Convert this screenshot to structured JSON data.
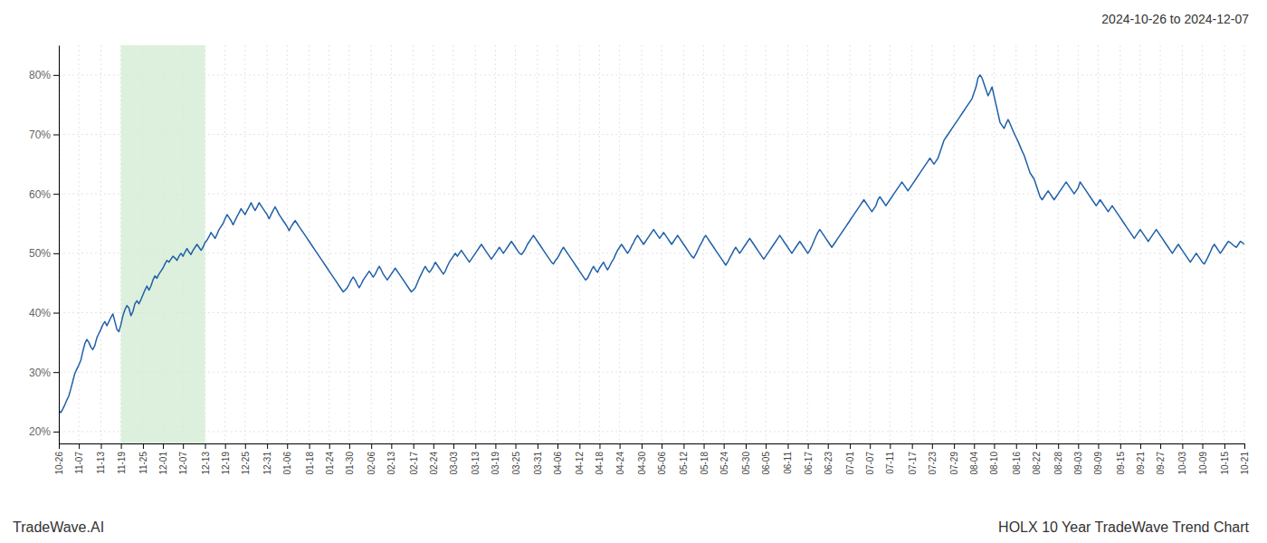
{
  "chart_data": {
    "type": "line",
    "title": "HOLX 10 Year TradeWave Trend Chart",
    "subtitle": "2024-10-26 to 2024-12-07",
    "annotations": [
      "TradeWave.AI"
    ],
    "color": "#2060a8",
    "grid": true,
    "ylim": [
      18,
      85
    ],
    "yticks": [
      {
        "value": 20,
        "label": "20%"
      },
      {
        "value": 30,
        "label": "30%"
      },
      {
        "value": 40,
        "label": "40%"
      },
      {
        "value": 50,
        "label": "50%"
      },
      {
        "value": 60,
        "label": "60%"
      },
      {
        "value": 70,
        "label": "70%"
      },
      {
        "value": 80,
        "label": "80%"
      }
    ],
    "highlight": {
      "from": "11-19",
      "to": "12-13",
      "color": "#d4ecd4"
    },
    "categories": [
      "10-26",
      null,
      null,
      null,
      null,
      null,
      null,
      null,
      null,
      null,
      "11-07",
      null,
      null,
      null,
      null,
      null,
      null,
      null,
      null,
      null,
      null,
      "11-13",
      null,
      null,
      null,
      null,
      null,
      null,
      null,
      null,
      null,
      "11-19",
      null,
      null,
      null,
      null,
      null,
      null,
      null,
      null,
      null,
      null,
      "11-25",
      null,
      null,
      null,
      null,
      null,
      null,
      null,
      null,
      null,
      "12-01",
      null,
      null,
      null,
      null,
      null,
      null,
      null,
      null,
      null,
      "12-07",
      null,
      null,
      null,
      null,
      null,
      null,
      null,
      null,
      null,
      null,
      "12-13",
      null,
      null,
      null,
      null,
      null,
      null,
      null,
      null,
      null,
      "12-19",
      null,
      null,
      null,
      null,
      null,
      null,
      null,
      null,
      null,
      "12-25",
      null,
      null,
      null,
      null,
      null,
      null,
      null,
      null,
      null,
      null,
      "12-31",
      null,
      null,
      null,
      null,
      null,
      null,
      null,
      null,
      null,
      "01-06",
      null,
      null,
      null,
      null,
      null,
      null,
      null,
      null,
      null,
      null,
      "01-18",
      null,
      null,
      null,
      null,
      null,
      null,
      null,
      null,
      null,
      "01-24",
      null,
      null,
      null,
      null,
      null,
      null,
      null,
      null,
      null,
      "01-30",
      null,
      null,
      null,
      null,
      null,
      null,
      null,
      null,
      null,
      null,
      "02-06",
      null,
      null,
      null,
      null,
      null,
      null,
      null,
      null,
      null,
      "02-13",
      null,
      null,
      null,
      null,
      null,
      null,
      null,
      null,
      null,
      null,
      "02-17",
      null,
      null,
      null,
      null,
      null,
      null,
      null,
      null,
      null,
      "02-24",
      null,
      null,
      null,
      null,
      null,
      null,
      null,
      null,
      null,
      "03-03",
      null,
      null,
      null,
      null,
      null,
      null,
      null,
      null,
      null,
      null,
      "03-13",
      null,
      null,
      null,
      null,
      null,
      null,
      null,
      null,
      null,
      "03-19",
      null,
      null,
      null,
      null,
      null,
      null,
      null,
      null,
      null,
      "03-25",
      null,
      null,
      null,
      null,
      null,
      null,
      null,
      null,
      null,
      null,
      "03-31",
      null,
      null,
      null,
      null,
      null,
      null,
      null,
      null,
      null,
      "04-06",
      null,
      null,
      null,
      null,
      null,
      null,
      null,
      null,
      null,
      null,
      "04-12",
      null,
      null,
      null,
      null,
      null,
      null,
      null,
      null,
      null,
      "04-18",
      null,
      null,
      null,
      null,
      null,
      null,
      null,
      null,
      null,
      "04-24",
      null,
      null,
      null,
      null,
      null,
      null,
      null,
      null,
      null,
      null,
      "04-30",
      null,
      null,
      null,
      null,
      null,
      null,
      null,
      null,
      null,
      "05-06",
      null,
      null,
      null,
      null,
      null,
      null,
      null,
      null,
      null,
      null,
      "05-12",
      null,
      null,
      null,
      null,
      null,
      null,
      null,
      null,
      null,
      "05-18",
      null,
      null,
      null,
      null,
      null,
      null,
      null,
      null,
      null,
      "05-24",
      null,
      null,
      null,
      null,
      null,
      null,
      null,
      null,
      null,
      null,
      "05-30",
      null,
      null,
      null,
      null,
      null,
      null,
      null,
      null,
      null,
      "06-05",
      null,
      null,
      null,
      null,
      null,
      null,
      null,
      null,
      null,
      null,
      "06-11",
      null,
      null,
      null,
      null,
      null,
      null,
      null,
      null,
      null,
      "06-17",
      null,
      null,
      null,
      null,
      null,
      null,
      null,
      null,
      null,
      "06-23",
      null,
      null,
      null,
      null,
      null,
      null,
      null,
      null,
      null,
      null,
      "07-01",
      null,
      null,
      null,
      null,
      null,
      null,
      null,
      null,
      null,
      "07-07",
      null,
      null,
      null,
      null,
      null,
      null,
      null,
      null,
      null,
      "07-11",
      null,
      null,
      null,
      null,
      null,
      null,
      null,
      null,
      null,
      null,
      "07-17",
      null,
      null,
      null,
      null,
      null,
      null,
      null,
      null,
      null,
      "07-23",
      null,
      null,
      null,
      null,
      null,
      null,
      null,
      null,
      null,
      null,
      "07-29",
      null,
      null,
      null,
      null,
      null,
      null,
      null,
      null,
      null,
      "08-04",
      null,
      null,
      null,
      null,
      null,
      null,
      null,
      null,
      null,
      "08-10",
      null,
      null,
      null,
      null,
      null,
      null,
      null,
      null,
      null,
      null,
      "08-16",
      null,
      null,
      null,
      null,
      null,
      null,
      null,
      null,
      null,
      "08-22",
      null,
      null,
      null,
      null,
      null,
      null,
      null,
      null,
      null,
      null,
      "08-28",
      null,
      null,
      null,
      null,
      null,
      null,
      null,
      null,
      null,
      "09-03",
      null,
      null,
      null,
      null,
      null,
      null,
      null,
      null,
      null,
      "09-09",
      null,
      null,
      null,
      null,
      null,
      null,
      null,
      null,
      null,
      null,
      "09-15",
      null,
      null,
      null,
      null,
      null,
      null,
      null,
      null,
      null,
      "09-21",
      null,
      null,
      null,
      null,
      null,
      null,
      null,
      null,
      null,
      "09-27",
      null,
      null,
      null,
      null,
      null,
      null,
      null,
      null,
      null,
      null,
      "10-03",
      null,
      null,
      null,
      null,
      null,
      null,
      null,
      null,
      null,
      "10-09",
      null,
      null,
      null,
      null,
      null,
      null,
      null,
      null,
      null,
      null,
      "10-15",
      null,
      null,
      null,
      null,
      null,
      null,
      null,
      null,
      null,
      "10-21"
    ],
    "values": [
      23.5,
      23.2,
      23.8,
      24.5,
      25.3,
      26.0,
      27.2,
      28.5,
      29.8,
      30.5,
      31.2,
      32.0,
      33.5,
      34.8,
      35.5,
      35.0,
      34.2,
      33.8,
      34.5,
      35.8,
      36.5,
      37.2,
      38.0,
      38.5,
      37.8,
      38.5,
      39.2,
      39.8,
      38.5,
      37.2,
      36.8,
      38.0,
      39.5,
      40.5,
      41.2,
      40.8,
      39.5,
      40.2,
      41.5,
      42.0,
      41.5,
      42.2,
      43.0,
      43.8,
      44.5,
      43.8,
      44.5,
      45.5,
      46.2,
      45.8,
      46.5,
      47.0,
      47.5,
      48.2,
      48.8,
      48.5,
      49.0,
      49.5,
      49.2,
      48.8,
      49.5,
      50.0,
      49.5,
      50.2,
      50.8,
      50.2,
      49.8,
      50.5,
      51.0,
      51.5,
      51.0,
      50.5,
      51.0,
      51.8,
      52.2,
      52.8,
      53.5,
      53.0,
      52.5,
      53.2,
      54.0,
      54.5,
      55.0,
      55.8,
      56.5,
      56.0,
      55.5,
      54.8,
      55.5,
      56.2,
      56.8,
      57.5,
      57.0,
      56.5,
      57.2,
      57.8,
      58.5,
      57.8,
      57.2,
      57.8,
      58.5,
      58.0,
      57.5,
      57.0,
      56.5,
      55.8,
      56.5,
      57.2,
      57.8,
      57.2,
      56.5,
      56.0,
      55.5,
      55.0,
      54.5,
      53.8,
      54.5,
      55.0,
      55.5,
      55.0,
      54.5,
      54.0,
      53.5,
      53.0,
      52.5,
      52.0,
      51.5,
      51.0,
      50.5,
      50.0,
      49.5,
      49.0,
      48.5,
      48.0,
      47.5,
      47.0,
      46.5,
      46.0,
      45.5,
      45.0,
      44.5,
      44.0,
      43.5,
      43.8,
      44.2,
      44.8,
      45.5,
      46.0,
      45.5,
      44.8,
      44.2,
      44.8,
      45.5,
      46.0,
      46.5,
      47.0,
      46.5,
      46.0,
      46.5,
      47.2,
      47.8,
      47.2,
      46.5,
      46.0,
      45.5,
      46.0,
      46.5,
      47.0,
      47.5,
      47.0,
      46.5,
      46.0,
      45.5,
      45.0,
      44.5,
      44.0,
      43.5,
      43.8,
      44.2,
      45.0,
      45.8,
      46.5,
      47.2,
      47.8,
      47.2,
      46.8,
      47.2,
      47.8,
      48.5,
      48.0,
      47.5,
      47.0,
      46.5,
      47.0,
      47.8,
      48.5,
      49.0,
      49.5,
      50.0,
      49.5,
      50.0,
      50.5,
      50.0,
      49.5,
      49.0,
      48.5,
      49.0,
      49.5,
      50.0,
      50.5,
      51.0,
      51.5,
      51.0,
      50.5,
      50.0,
      49.5,
      49.0,
      49.5,
      50.0,
      50.5,
      51.0,
      50.5,
      50.0,
      50.5,
      51.0,
      51.5,
      52.0,
      51.5,
      51.0,
      50.5,
      50.0,
      49.8,
      50.2,
      50.8,
      51.5,
      52.0,
      52.5,
      53.0,
      52.5,
      52.0,
      51.5,
      51.0,
      50.5,
      50.0,
      49.5,
      49.0,
      48.5,
      48.2,
      48.8,
      49.2,
      49.8,
      50.5,
      51.0,
      50.5,
      50.0,
      49.5,
      49.0,
      48.5,
      48.0,
      47.5,
      47.0,
      46.5,
      46.0,
      45.5,
      45.8,
      46.5,
      47.2,
      47.8,
      47.2,
      46.8,
      47.5,
      48.0,
      48.5,
      47.8,
      47.2,
      47.8,
      48.5,
      49.0,
      49.8,
      50.5,
      51.0,
      51.5,
      51.0,
      50.5,
      50.0,
      50.5,
      51.2,
      51.8,
      52.5,
      53.0,
      52.5,
      52.0,
      51.5,
      52.0,
      52.5,
      53.0,
      53.5,
      54.0,
      53.5,
      53.0,
      52.5,
      53.0,
      53.5,
      53.0,
      52.5,
      52.0,
      51.5,
      52.0,
      52.5,
      53.0,
      52.5,
      52.0,
      51.5,
      51.0,
      50.5,
      50.0,
      49.5,
      49.2,
      49.8,
      50.5,
      51.2,
      51.8,
      52.5,
      53.0,
      52.5,
      52.0,
      51.5,
      51.0,
      50.5,
      50.0,
      49.5,
      49.0,
      48.5,
      48.0,
      48.5,
      49.2,
      49.8,
      50.5,
      51.0,
      50.5,
      50.0,
      50.5,
      51.0,
      51.5,
      52.0,
      52.5,
      52.0,
      51.5,
      51.0,
      50.5,
      50.0,
      49.5,
      49.0,
      49.5,
      50.0,
      50.5,
      51.0,
      51.5,
      52.0,
      52.5,
      53.0,
      52.5,
      52.0,
      51.5,
      51.0,
      50.5,
      50.0,
      50.5,
      51.0,
      51.5,
      52.0,
      51.5,
      51.0,
      50.5,
      50.0,
      50.5,
      51.2,
      52.0,
      52.8,
      53.5,
      54.0,
      53.5,
      53.0,
      52.5,
      52.0,
      51.5,
      51.0,
      51.5,
      52.0,
      52.5,
      53.0,
      53.5,
      54.0,
      54.5,
      55.0,
      55.5,
      56.0,
      56.5,
      57.0,
      57.5,
      58.0,
      58.5,
      59.0,
      58.5,
      58.0,
      57.5,
      57.0,
      57.5,
      58.0,
      59.0,
      59.5,
      59.0,
      58.5,
      58.0,
      58.5,
      59.0,
      59.5,
      60.0,
      60.5,
      61.0,
      61.5,
      62.0,
      61.5,
      61.0,
      60.5,
      61.0,
      61.5,
      62.0,
      62.5,
      63.0,
      63.5,
      64.0,
      64.5,
      65.0,
      65.5,
      66.0,
      65.5,
      65.0,
      65.5,
      66.0,
      67.0,
      68.0,
      69.0,
      69.5,
      70.0,
      70.5,
      71.0,
      71.5,
      72.0,
      72.5,
      73.0,
      73.5,
      74.0,
      74.5,
      75.0,
      75.5,
      76.0,
      77.0,
      78.0,
      79.5,
      80.0,
      79.5,
      78.5,
      77.5,
      76.5,
      77.2,
      78.0,
      76.5,
      75.0,
      73.5,
      72.0,
      71.5,
      71.0,
      71.8,
      72.5,
      71.8,
      71.0,
      70.2,
      69.5,
      68.8,
      68.0,
      67.2,
      66.5,
      65.5,
      64.5,
      63.5,
      63.0,
      62.5,
      61.5,
      60.5,
      59.5,
      59.0,
      59.5,
      60.0,
      60.5,
      60.0,
      59.5,
      59.0,
      59.5,
      60.0,
      60.5,
      61.0,
      61.5,
      62.0,
      61.5,
      61.0,
      60.5,
      60.0,
      60.5,
      61.0,
      62.0,
      61.5,
      61.0,
      60.5,
      60.0,
      59.5,
      59.0,
      58.5,
      58.0,
      58.5,
      59.0,
      58.5,
      58.0,
      57.5,
      57.0,
      57.5,
      58.0,
      57.5,
      57.0,
      56.5,
      56.0,
      55.5,
      55.0,
      54.5,
      54.0,
      53.5,
      53.0,
      52.5,
      53.0,
      53.5,
      54.0,
      53.5,
      53.0,
      52.5,
      52.0,
      52.5,
      53.0,
      53.5,
      54.0,
      53.5,
      53.0,
      52.5,
      52.0,
      51.5,
      51.0,
      50.5,
      50.0,
      50.5,
      51.0,
      51.5,
      51.0,
      50.5,
      50.0,
      49.5,
      49.0,
      48.5,
      49.0,
      49.5,
      50.0,
      49.5,
      49.0,
      48.5,
      48.2,
      48.8,
      49.5,
      50.2,
      51.0,
      51.5,
      51.0,
      50.5,
      50.0,
      50.5,
      51.0,
      51.5,
      52.0,
      51.8,
      51.5,
      51.2,
      51.0,
      51.5,
      52.0,
      51.8,
      51.5
    ]
  }
}
